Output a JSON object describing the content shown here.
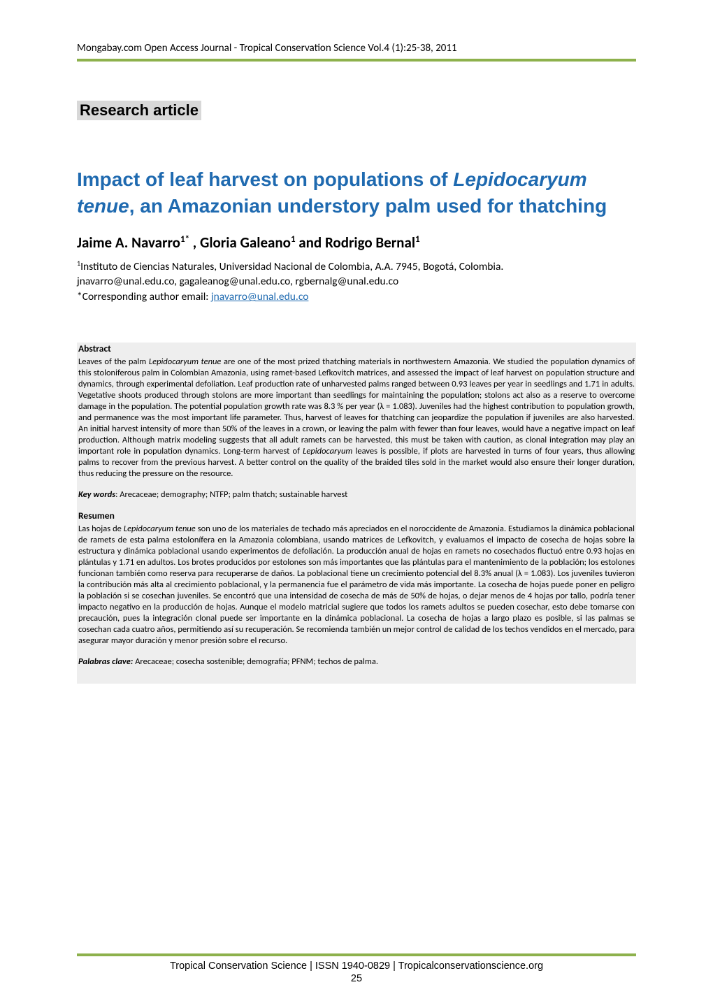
{
  "colors": {
    "text": "#000000",
    "title_blue": "#1f6ab0",
    "green_bar": "#8db14c",
    "article_type_bg": "#d8d8d8",
    "abstract_bg": "#eeeeee",
    "link_blue": "#1f6ab0",
    "background": "#ffffff"
  },
  "header": "Mongabay.com Open Access Journal - Tropical Conservation Science Vol.4 (1):25-38, 2011",
  "article_type": "Research article",
  "title_plain_pre": "Impact of leaf harvest on populations of ",
  "title_italic": "Lepidocaryum tenue",
  "title_plain_post": ", an Amazonian understory palm used for thatching",
  "authors_html": "Jaime A. Navarro",
  "authors_sup1": "1*",
  "authors_mid": " , Gloria Galeano",
  "authors_sup2": "1",
  "authors_mid2": " and Rodrigo Bernal",
  "authors_sup3": "1",
  "affiliation_line1": "Instituto de Ciencias Naturales, Universidad Nacional de Colombia, A.A. 7945, Bogotá, Colombia.",
  "affiliation_line2": "jnavarro@unal.edu.co, gagaleanog@unal.edu.co, rgbernalg@unal.edu.co",
  "corresponding_label": "*Corresponding author email: ",
  "corresponding_email": "jnavarro@unal.edu.co",
  "abstract": {
    "heading": "Abstract",
    "text_pre": "Leaves of the palm ",
    "text_italic1": "Lepidocaryum tenue",
    "text_mid": " are one of the most prized thatching materials in northwestern Amazonia. We studied the population dynamics of this stoloniferous palm in Colombian Amazonia, using ramet-based Lefkovitch matrices, and assessed the impact of leaf harvest on population structure and dynamics, through experimental defoliation. Leaf production rate of unharvested palms ranged between 0.93 leaves per year in seedlings and 1.71 in adults. Vegetative shoots produced through stolons are more important than seedlings for maintaining the population; stolons act also as a reserve to overcome damage in the population. The potential population growth rate was 8.3 % per year (λ = 1.083). Juveniles had the highest contribution to population growth, and permanence was the most important life parameter. Thus, harvest of leaves for thatching can jeopardize the population if juveniles are also harvested. An initial harvest intensity of more than 50% of the leaves in a crown, or leaving the palm with fewer than four leaves, would have a negative impact on leaf production. Although matrix modeling suggests that all adult ramets can be harvested, this must be taken with caution, as clonal integration may play an important role in population dynamics. Long-term harvest of ",
    "text_italic2": "Lepidocaryum",
    "text_post": " leaves is possible, if plots are harvested in turns of four years, thus allowing palms to recover from the previous harvest. A better control on the quality of the braided tiles sold in the market would also ensure their longer duration, thus reducing the pressure on the resource."
  },
  "keywords": {
    "label": "Key words",
    "text": ": Arecaceae; demography; NTFP; palm thatch; sustainable harvest"
  },
  "resumen": {
    "heading": "Resumen",
    "text_pre": "Las hojas de ",
    "text_italic1": "Lepidocaryum tenue",
    "text_post": " son uno de los materiales de techado más apreciados en el noroccidente de Amazonia. Estudiamos la dinámica poblacional de ramets de esta palma estolonífera en la Amazonia colombiana, usando matrices de Lefkovitch, y evaluamos el impacto de cosecha de hojas sobre la estructura y dinámica poblacional usando experimentos de defoliación. La producción anual de hojas en ramets no cosechados fluctuó entre 0.93 hojas en plántulas y 1.71 en adultos. Los brotes producidos por estolones son más importantes que las plántulas para el mantenimiento de la población; los estolones funcionan también como reserva para recuperarse de daños. La poblacional tiene un crecimiento potencial del 8.3% anual (λ = 1.083). Los juveniles tuvieron la contribución más alta al crecimiento poblacional, y la permanencia fue el parámetro de vida más importante. La cosecha de hojas puede poner en peligro la población si se cosechan juveniles. Se encontró que una intensidad de cosecha de más de 50% de hojas, o dejar menos de 4 hojas por tallo, podría tener impacto negativo en la producción de hojas. Aunque el modelo matricial sugiere que todos los ramets adultos se pueden cosechar, esto debe tomarse con precaución, pues la integración clonal puede ser importante en la dinámica poblacional. La cosecha de hojas a largo plazo es posible, si las palmas se cosechan cada cuatro años, permitiendo así su recuperación. Se recomienda también un mejor control de calidad de los techos vendidos en el mercado, para asegurar mayor duración y menor presión sobre el recurso."
  },
  "palabras": {
    "label": "Palabras clave:",
    "text": " Arecaceae; cosecha sostenible; demografía; PFNM; techos de palma."
  },
  "footer": {
    "text": "Tropical Conservation Science | ISSN 1940-0829 | Tropicalconservationscience.org",
    "page": "25"
  }
}
